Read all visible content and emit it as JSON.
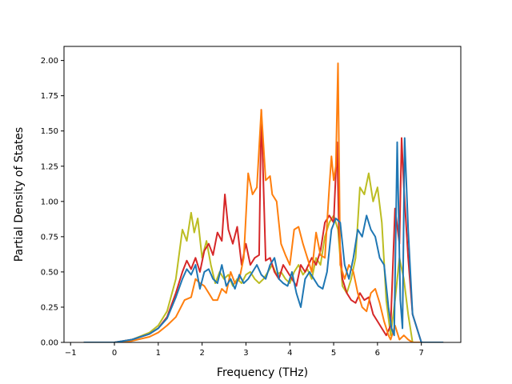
{
  "chart_data": {
    "type": "line",
    "xlabel": "Frequency (THz)",
    "ylabel": "Partial Density of States",
    "xlim": [
      -1.15,
      7.9
    ],
    "ylim": [
      0,
      2.1
    ],
    "xticks": [
      {
        "value": -1,
        "label": "−1"
      },
      {
        "value": 0,
        "label": "0"
      },
      {
        "value": 1,
        "label": "1"
      },
      {
        "value": 2,
        "label": "2"
      },
      {
        "value": 3,
        "label": "3"
      },
      {
        "value": 4,
        "label": "4"
      },
      {
        "value": 5,
        "label": "5"
      },
      {
        "value": 6,
        "label": "6"
      },
      {
        "value": 7,
        "label": "7"
      }
    ],
    "yticks": [
      {
        "value": 0.0,
        "label": "0.00"
      },
      {
        "value": 0.25,
        "label": "0.25"
      },
      {
        "value": 0.5,
        "label": "0.50"
      },
      {
        "value": 0.75,
        "label": "0.75"
      },
      {
        "value": 1.0,
        "label": "1.00"
      },
      {
        "value": 1.25,
        "label": "1.25"
      },
      {
        "value": 1.5,
        "label": "1.50"
      },
      {
        "value": 1.75,
        "label": "1.75"
      },
      {
        "value": 2.0,
        "label": "2.00"
      }
    ],
    "grid": false,
    "legend": "none",
    "series": [
      {
        "color": "#bcbd22",
        "x": [
          -0.7,
          0,
          0.4,
          0.8,
          1.0,
          1.2,
          1.4,
          1.55,
          1.65,
          1.75,
          1.82,
          1.9,
          2.0,
          2.1,
          2.2,
          2.3,
          2.4,
          2.5,
          2.6,
          2.7,
          2.8,
          2.9,
          3.0,
          3.1,
          3.2,
          3.3,
          3.4,
          3.5,
          3.6,
          3.7,
          3.8,
          3.9,
          4.0,
          4.1,
          4.2,
          4.3,
          4.4,
          4.5,
          4.6,
          4.7,
          4.8,
          4.9,
          5.0,
          5.1,
          5.2,
          5.3,
          5.4,
          5.5,
          5.6,
          5.7,
          5.8,
          5.9,
          6.0,
          6.1,
          6.2,
          6.3,
          6.4,
          6.5,
          6.6,
          6.7,
          6.8,
          7.0,
          7.5
        ],
        "y": [
          0,
          0,
          0.02,
          0.07,
          0.12,
          0.22,
          0.45,
          0.8,
          0.72,
          0.92,
          0.78,
          0.88,
          0.6,
          0.72,
          0.55,
          0.42,
          0.5,
          0.45,
          0.48,
          0.4,
          0.45,
          0.42,
          0.48,
          0.5,
          0.45,
          0.42,
          0.45,
          0.5,
          0.55,
          0.48,
          0.5,
          0.45,
          0.42,
          0.5,
          0.55,
          0.48,
          0.52,
          0.45,
          0.6,
          0.55,
          0.75,
          0.85,
          0.9,
          0.8,
          0.4,
          0.35,
          0.45,
          0.6,
          1.1,
          1.05,
          1.2,
          1.0,
          1.1,
          0.85,
          0.3,
          0.05,
          0.3,
          0.6,
          0.45,
          0.2,
          0.0,
          0,
          0
        ]
      },
      {
        "color": "#d62728",
        "x": [
          -0.7,
          0,
          0.4,
          0.8,
          1.0,
          1.2,
          1.4,
          1.55,
          1.65,
          1.75,
          1.85,
          1.95,
          2.05,
          2.15,
          2.25,
          2.35,
          2.45,
          2.52,
          2.6,
          2.7,
          2.8,
          2.9,
          3.0,
          3.1,
          3.2,
          3.3,
          3.35,
          3.45,
          3.55,
          3.65,
          3.75,
          3.85,
          3.95,
          4.05,
          4.15,
          4.25,
          4.35,
          4.5,
          4.6,
          4.7,
          4.8,
          4.9,
          5.0,
          5.08,
          5.12,
          5.2,
          5.3,
          5.4,
          5.5,
          5.6,
          5.7,
          5.8,
          5.9,
          6.0,
          6.1,
          6.2,
          6.3,
          6.4,
          6.5,
          6.55,
          6.6,
          6.7,
          6.8,
          7.0,
          7.5
        ],
        "y": [
          0,
          0,
          0.02,
          0.06,
          0.1,
          0.18,
          0.35,
          0.5,
          0.58,
          0.52,
          0.6,
          0.5,
          0.65,
          0.7,
          0.62,
          0.78,
          0.72,
          1.05,
          0.8,
          0.7,
          0.82,
          0.55,
          0.7,
          0.55,
          0.6,
          0.62,
          1.65,
          0.58,
          0.6,
          0.5,
          0.45,
          0.55,
          0.5,
          0.45,
          0.4,
          0.55,
          0.5,
          0.6,
          0.55,
          0.65,
          0.85,
          0.9,
          0.85,
          1.42,
          0.8,
          0.45,
          0.35,
          0.3,
          0.28,
          0.35,
          0.3,
          0.32,
          0.2,
          0.15,
          0.1,
          0.05,
          0.12,
          0.95,
          0.7,
          1.45,
          1.1,
          0.6,
          0.2,
          0,
          0
        ]
      },
      {
        "color": "#ff7f0e",
        "x": [
          -0.7,
          0,
          0.4,
          0.8,
          1.0,
          1.2,
          1.4,
          1.6,
          1.75,
          1.85,
          1.95,
          2.05,
          2.15,
          2.25,
          2.35,
          2.45,
          2.55,
          2.65,
          2.75,
          2.85,
          2.95,
          3.05,
          3.15,
          3.25,
          3.35,
          3.45,
          3.55,
          3.6,
          3.7,
          3.8,
          3.9,
          4.0,
          4.1,
          4.2,
          4.3,
          4.4,
          4.5,
          4.6,
          4.7,
          4.8,
          4.9,
          4.95,
          5.0,
          5.05,
          5.1,
          5.15,
          5.25,
          5.35,
          5.45,
          5.55,
          5.65,
          5.75,
          5.85,
          5.95,
          6.05,
          6.15,
          6.25,
          6.3,
          6.4,
          6.5,
          6.6,
          6.7,
          6.8,
          7.0,
          7.5
        ],
        "y": [
          0,
          0,
          0.01,
          0.04,
          0.07,
          0.12,
          0.18,
          0.3,
          0.32,
          0.45,
          0.42,
          0.4,
          0.35,
          0.3,
          0.3,
          0.38,
          0.35,
          0.5,
          0.42,
          0.45,
          0.6,
          1.2,
          1.05,
          1.1,
          1.65,
          1.15,
          1.18,
          1.05,
          1.0,
          0.7,
          0.62,
          0.55,
          0.8,
          0.82,
          0.7,
          0.6,
          0.5,
          0.78,
          0.62,
          0.6,
          1.1,
          1.32,
          1.15,
          1.25,
          1.98,
          0.55,
          0.45,
          0.55,
          0.5,
          0.35,
          0.25,
          0.22,
          0.35,
          0.38,
          0.28,
          0.15,
          0.05,
          0.02,
          0.12,
          0.02,
          0.05,
          0.02,
          0,
          0,
          0
        ]
      },
      {
        "color": "#1f77b4",
        "x": [
          -0.7,
          0,
          0.4,
          0.8,
          1.0,
          1.2,
          1.4,
          1.55,
          1.65,
          1.75,
          1.85,
          1.95,
          2.05,
          2.15,
          2.25,
          2.35,
          2.45,
          2.55,
          2.65,
          2.75,
          2.85,
          2.95,
          3.05,
          3.15,
          3.25,
          3.35,
          3.45,
          3.55,
          3.65,
          3.75,
          3.85,
          3.95,
          4.05,
          4.15,
          4.25,
          4.35,
          4.45,
          4.55,
          4.65,
          4.75,
          4.85,
          4.95,
          5.05,
          5.15,
          5.25,
          5.35,
          5.45,
          5.55,
          5.65,
          5.75,
          5.85,
          5.95,
          6.05,
          6.15,
          6.25,
          6.32,
          6.38,
          6.45,
          6.52,
          6.57,
          6.62,
          6.7,
          6.8,
          7.0,
          7.5
        ],
        "y": [
          0,
          0,
          0.02,
          0.06,
          0.1,
          0.17,
          0.32,
          0.45,
          0.52,
          0.48,
          0.55,
          0.38,
          0.5,
          0.52,
          0.45,
          0.42,
          0.55,
          0.4,
          0.45,
          0.38,
          0.48,
          0.42,
          0.45,
          0.5,
          0.55,
          0.48,
          0.45,
          0.55,
          0.6,
          0.45,
          0.42,
          0.4,
          0.5,
          0.35,
          0.25,
          0.45,
          0.5,
          0.45,
          0.4,
          0.38,
          0.5,
          0.8,
          0.88,
          0.85,
          0.55,
          0.45,
          0.6,
          0.8,
          0.75,
          0.9,
          0.8,
          0.75,
          0.6,
          0.55,
          0.25,
          0.1,
          0.05,
          1.42,
          0.3,
          0.1,
          1.45,
          0.8,
          0.2,
          0,
          0
        ]
      }
    ]
  }
}
